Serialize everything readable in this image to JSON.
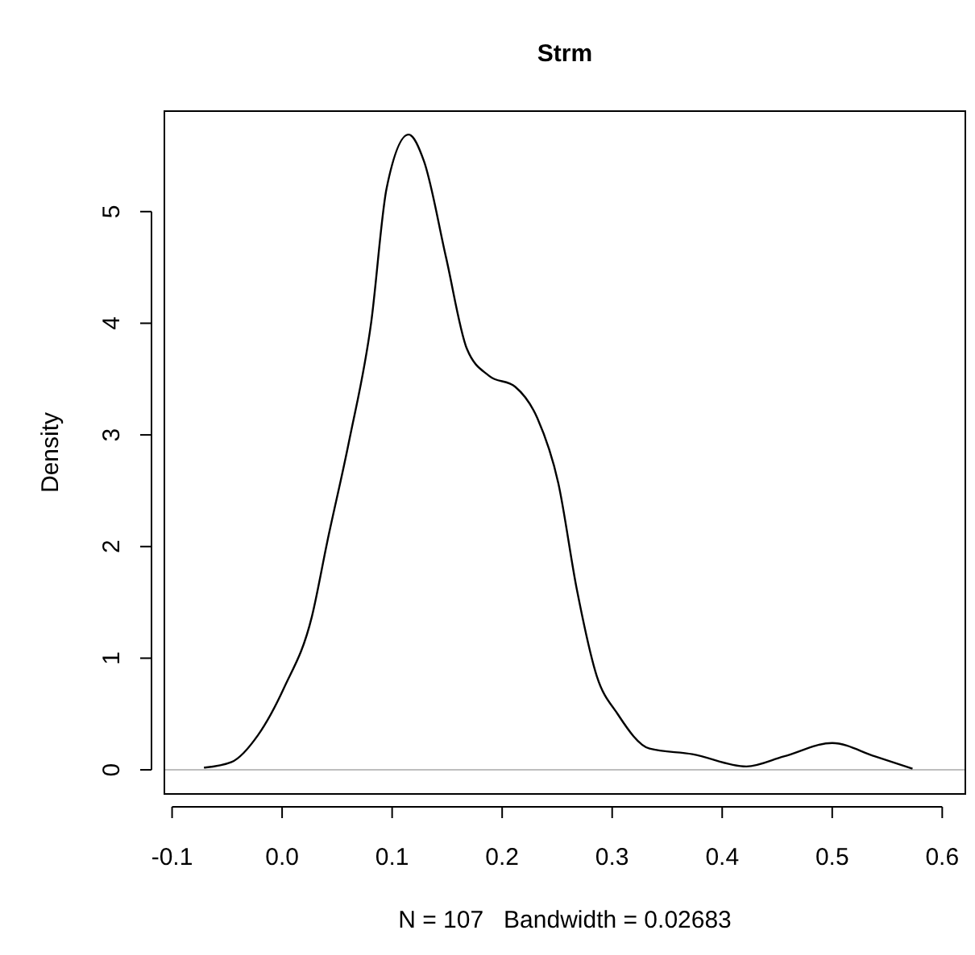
{
  "chart_data": {
    "type": "line",
    "title": "Strm",
    "xlabel": "N = 107   Bandwidth = 0.02683",
    "ylabel": "Density",
    "x": [
      -0.071,
      -0.046,
      -0.022,
      0.002,
      0.027,
      0.041,
      0.061,
      0.081,
      0.095,
      0.115,
      0.129,
      0.149,
      0.168,
      0.188,
      0.212,
      0.232,
      0.251,
      0.268,
      0.286,
      0.305,
      0.334,
      0.373,
      0.422,
      0.456,
      0.5,
      0.539,
      0.573
    ],
    "series": [
      {
        "color": "#000000",
        "values": [
          0.02,
          0.07,
          0.31,
          0.74,
          1.37,
          2.04,
          2.95,
          4.01,
          5.21,
          5.69,
          5.45,
          4.59,
          3.77,
          3.53,
          3.43,
          3.15,
          2.57,
          1.61,
          0.84,
          0.5,
          0.19,
          0.14,
          0.03,
          0.12,
          0.24,
          0.12,
          0.01
        ]
      }
    ],
    "xlim": [
      -0.107,
      0.621
    ],
    "ylim": [
      -0.216,
      5.9
    ],
    "xticks": [
      -0.1,
      {
        "value": 0,
        "label": "0.0"
      },
      0.1,
      0.2,
      0.3,
      0.4,
      0.5,
      0.6
    ],
    "yticks": [
      0,
      1,
      2,
      3,
      4,
      5
    ],
    "ref_lines": [
      {
        "axis": "y",
        "value": 0,
        "color": "#bebebe"
      }
    ],
    "grid": false,
    "marker": "none",
    "line_style": "solid"
  }
}
